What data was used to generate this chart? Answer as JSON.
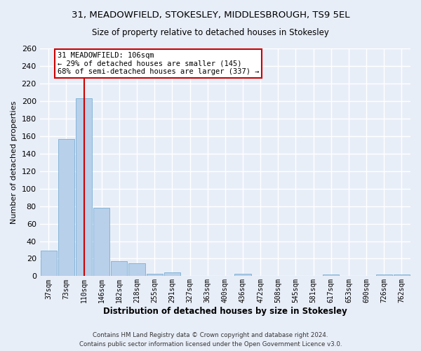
{
  "title": "31, MEADOWFIELD, STOKESLEY, MIDDLESBROUGH, TS9 5EL",
  "subtitle": "Size of property relative to detached houses in Stokesley",
  "xlabel": "Distribution of detached houses by size in Stokesley",
  "ylabel": "Number of detached properties",
  "categories": [
    "37sqm",
    "73sqm",
    "110sqm",
    "146sqm",
    "182sqm",
    "218sqm",
    "255sqm",
    "291sqm",
    "327sqm",
    "363sqm",
    "400sqm",
    "436sqm",
    "472sqm",
    "508sqm",
    "545sqm",
    "581sqm",
    "617sqm",
    "653sqm",
    "690sqm",
    "726sqm",
    "762sqm"
  ],
  "values": [
    29,
    157,
    203,
    78,
    17,
    15,
    3,
    4,
    0,
    0,
    0,
    3,
    0,
    0,
    0,
    0,
    2,
    0,
    0,
    2,
    2
  ],
  "bar_color": "#b8d0ea",
  "bar_edge_color": "#7aafd4",
  "vline_color": "#cc0000",
  "vline_index": 2,
  "ylim": [
    0,
    260
  ],
  "yticks": [
    0,
    20,
    40,
    60,
    80,
    100,
    120,
    140,
    160,
    180,
    200,
    220,
    240,
    260
  ],
  "background_color": "#e8eef8",
  "grid_color": "#ffffff",
  "annotation_line1": "31 MEADOWFIELD: 106sqm",
  "annotation_line2": "← 29% of detached houses are smaller (145)",
  "annotation_line3": "68% of semi-detached houses are larger (337) →",
  "annotation_box_color": "#ffffff",
  "annotation_box_edge": "#cc0000",
  "footer_line1": "Contains HM Land Registry data © Crown copyright and database right 2024.",
  "footer_line2": "Contains public sector information licensed under the Open Government Licence v3.0."
}
